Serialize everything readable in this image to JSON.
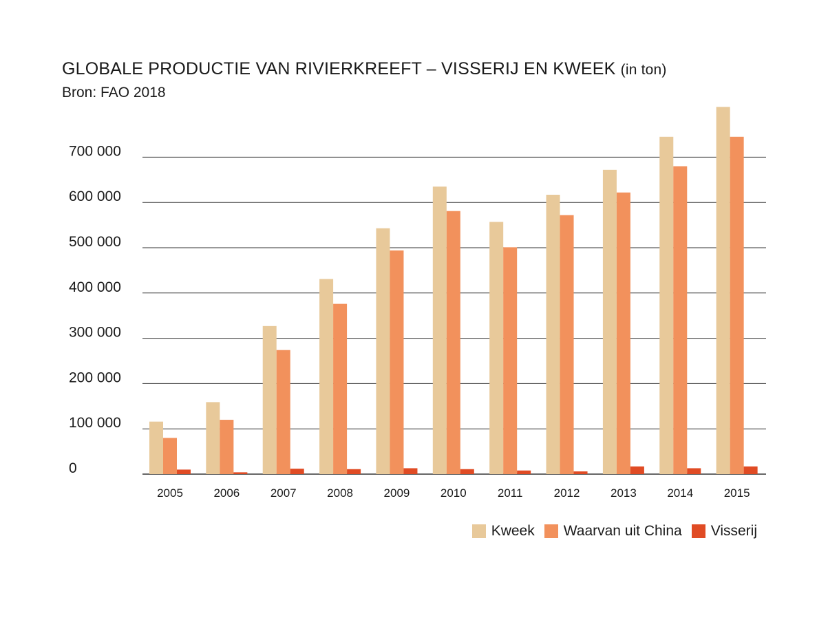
{
  "title": {
    "main": "GLOBALE PRODUCTIE VAN RIVIERKREEFT – VISSERIJ EN KWEEK",
    "unit": "(in ton)"
  },
  "source": "Bron: FAO 2018",
  "colors": {
    "kweek": "#e8c99a",
    "china": "#f2915c",
    "visserij": "#e04b24",
    "grid": "#333333"
  },
  "chart_data": {
    "type": "bar",
    "title": "GLOBALE PRODUCTIE VAN RIVIERKREEFT – VISSERIJ EN KWEEK (in ton)",
    "xlabel": "",
    "ylabel": "",
    "categories": [
      "2005",
      "2006",
      "2007",
      "2008",
      "2009",
      "2010",
      "2011",
      "2012",
      "2013",
      "2014",
      "2015"
    ],
    "series": [
      {
        "name": "Kweek",
        "values": [
          116000,
          159000,
          327000,
          431000,
          543000,
          635000,
          557000,
          617000,
          672000,
          745000,
          811000
        ]
      },
      {
        "name": "Waarvan uit China",
        "values": [
          80000,
          120000,
          274000,
          376000,
          494000,
          581000,
          501000,
          572000,
          622000,
          680000,
          745000
        ]
      },
      {
        "name": "Visserij",
        "values": [
          10000,
          4000,
          12000,
          11000,
          13000,
          11000,
          8000,
          6000,
          17000,
          13000,
          17000
        ]
      }
    ],
    "yticks": [
      0,
      100000,
      200000,
      300000,
      400000,
      500000,
      600000,
      700000
    ],
    "ytick_labels": [
      "0",
      "100 000",
      "200 000",
      "300 000",
      "400 000",
      "500 000",
      "600 000",
      "700 000"
    ],
    "ylim": [
      0,
      820000
    ],
    "grid": true,
    "legend_position": "bottom-right"
  }
}
